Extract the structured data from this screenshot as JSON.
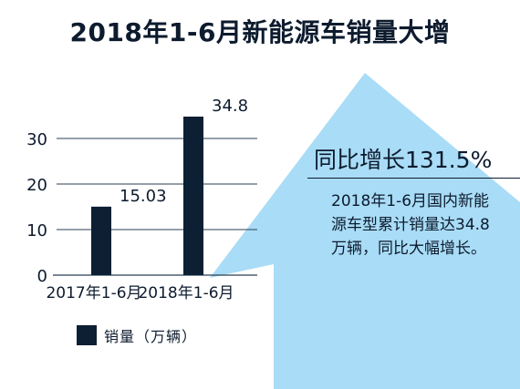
{
  "title": "2018年1-6月新能源车销量大增",
  "callout": {
    "headline": "同比增长131.5%",
    "body": "2018年1-6月国内新能源车型累计销量达34.8万辆，同比大幅增长。"
  },
  "colors": {
    "bar": "#0d1f33",
    "arrow": "#a9dcf6",
    "grid": "#2a3f55",
    "text": "#0d1b2e"
  },
  "legend": {
    "label": "销量（万辆）"
  },
  "chart_data": {
    "type": "bar",
    "categories": [
      "2017年1-6月",
      "2018年1-6月"
    ],
    "series": [
      {
        "name": "销量（万辆）",
        "values": [
          15.03,
          34.8
        ]
      }
    ],
    "data_labels": [
      "15.03",
      "34.8"
    ],
    "ylim": [
      0,
      30
    ],
    "yticks": [
      0,
      10,
      20,
      30
    ],
    "grid": true,
    "legend_position": "bottom-left"
  }
}
